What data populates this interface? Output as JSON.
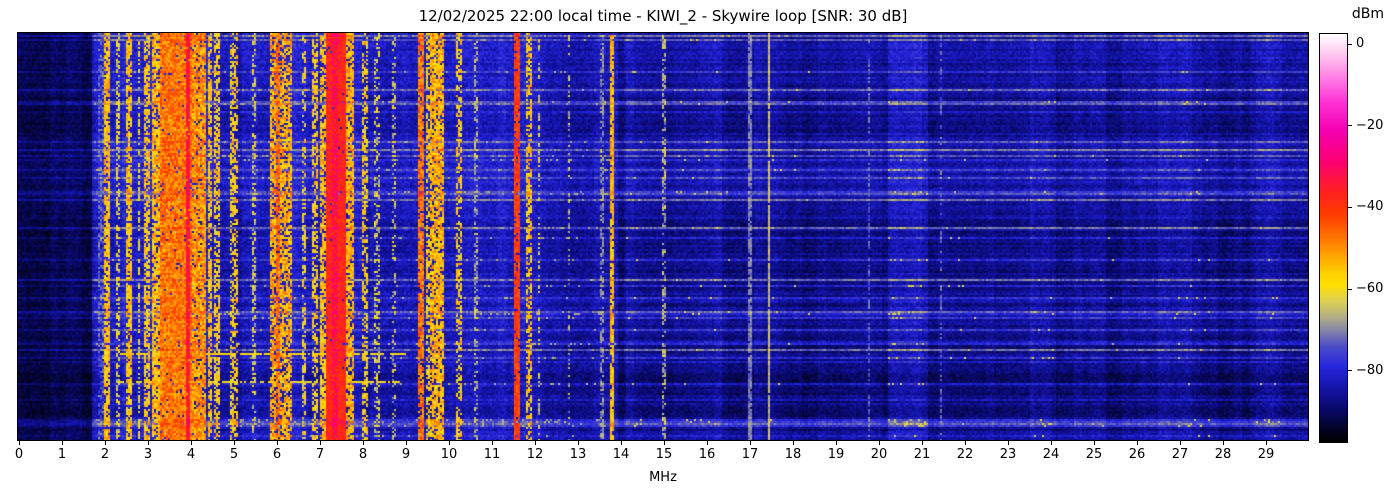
{
  "title": "12/02/2025 22:00 local time - KIWI_2 - Skywire loop [SNR: 30 dB]",
  "axes": {
    "xlabel": "MHz",
    "x_tick_labels": [
      "0",
      "1",
      "2",
      "3",
      "4",
      "5",
      "6",
      "7",
      "8",
      "9",
      "10",
      "11",
      "12",
      "13",
      "14",
      "15",
      "16",
      "17",
      "18",
      "19",
      "20",
      "21",
      "22",
      "23",
      "24",
      "25",
      "26",
      "27",
      "28",
      "29"
    ]
  },
  "colorbar": {
    "label": "dBm",
    "tick_labels": [
      "0",
      "−20",
      "−40",
      "−60",
      "−80"
    ],
    "tick_values": [
      0,
      -20,
      -40,
      -60,
      -80
    ],
    "vmax": 2.5,
    "vmin": -97.5,
    "stops": [
      {
        "v": 2.5,
        "c": "#ffffff"
      },
      {
        "v": -1,
        "c": "#ffd9f4"
      },
      {
        "v": -7,
        "c": "#ff8fe8"
      },
      {
        "v": -14,
        "c": "#ff33d6"
      },
      {
        "v": -21,
        "c": "#f500b4"
      },
      {
        "v": -29,
        "c": "#fc0070"
      },
      {
        "v": -36,
        "c": "#ff2020"
      },
      {
        "v": -42,
        "c": "#ff3c00"
      },
      {
        "v": -50,
        "c": "#ff9000"
      },
      {
        "v": -56,
        "c": "#ffcf00"
      },
      {
        "v": -59,
        "c": "#ffe000"
      },
      {
        "v": -63,
        "c": "#ddd055"
      },
      {
        "v": -67,
        "c": "#b0ad85"
      },
      {
        "v": -70,
        "c": "#8787a8"
      },
      {
        "v": -74,
        "c": "#4d4dc7"
      },
      {
        "v": -79,
        "c": "#2626df"
      },
      {
        "v": -84,
        "c": "#1414ab"
      },
      {
        "v": -90,
        "c": "#080863"
      },
      {
        "v": -95,
        "c": "#02021c"
      },
      {
        "v": -97.5,
        "c": "#000000"
      }
    ]
  },
  "chart_data": {
    "type": "heatmap",
    "title": "12/02/2025 22:00 local time - KIWI_2 - Skywire loop [SNR: 30 dB]",
    "xlabel": "MHz",
    "x_range_mhz": [
      0,
      30
    ],
    "x_tick_step_mhz": 1,
    "y_axis_visible_ticks": [],
    "value_unit": "dBm",
    "value_range": [
      -97.5,
      2.5
    ],
    "colorbar_ticks_dbm": [
      0,
      -20,
      -40,
      -60,
      -80
    ],
    "legend": "none",
    "grid": "off",
    "regions": [
      {
        "f0": 0.0,
        "f1": 1.72,
        "base": -91.5,
        "row_amp": 0.5,
        "noise": 2.5
      },
      {
        "f0": 1.72,
        "f1": 13.95,
        "base": -84.0,
        "row_amp": 0.85,
        "noise": 3.2
      },
      {
        "f0": 13.95,
        "f1": 30.0,
        "base": -87.5,
        "row_amp": 1.15,
        "noise": 2.8
      }
    ],
    "blue_zones": [
      {
        "f0": 1.75,
        "f1": 4.6,
        "boost": 2.0
      },
      {
        "f0": 5.8,
        "f1": 8.1,
        "boost": 1.2
      },
      {
        "f0": 9.2,
        "f1": 12.2,
        "boost": 0.8
      },
      {
        "f0": 14.1,
        "f1": 14.5,
        "boost": 2.0
      },
      {
        "f0": 16.0,
        "f1": 16.5,
        "boost": 1.5
      },
      {
        "f0": 20.25,
        "f1": 21.15,
        "boost": 4.5
      },
      {
        "f0": 23.55,
        "f1": 24.15,
        "boost": 3.0
      },
      {
        "f0": 26.5,
        "f1": 27.3,
        "boost": 2.5
      },
      {
        "f0": 28.8,
        "f1": 29.4,
        "boost": 2.0
      }
    ],
    "signal_bands": [
      {
        "f0": 1.85,
        "f1": 2.0,
        "level": -74,
        "jitter": 5,
        "coverage": 0.6
      },
      {
        "f0": 2.0,
        "f1": 2.14,
        "level": -56,
        "jitter": 6,
        "coverage": 0.8
      },
      {
        "f0": 2.28,
        "f1": 2.36,
        "level": -62,
        "jitter": 6,
        "coverage": 0.5
      },
      {
        "f0": 2.5,
        "f1": 2.65,
        "level": -56,
        "jitter": 6,
        "coverage": 0.75
      },
      {
        "f0": 2.78,
        "f1": 2.86,
        "level": -60,
        "jitter": 6,
        "coverage": 0.55
      },
      {
        "f0": 2.95,
        "f1": 3.08,
        "level": -57,
        "jitter": 6,
        "coverage": 0.7
      },
      {
        "f0": 3.12,
        "f1": 3.3,
        "level": -55,
        "jitter": 7,
        "coverage": 0.8
      },
      {
        "f0": 3.3,
        "f1": 4.05,
        "level": -48,
        "jitter": 6,
        "coverage": 0.97
      },
      {
        "f0": 3.91,
        "f1": 3.98,
        "level": -34,
        "jitter": 4,
        "coverage": 0.9
      },
      {
        "f0": 4.05,
        "f1": 4.35,
        "level": -51,
        "jitter": 7,
        "coverage": 0.9
      },
      {
        "f0": 4.4,
        "f1": 4.52,
        "level": -56,
        "jitter": 6,
        "coverage": 0.7
      },
      {
        "f0": 4.58,
        "f1": 4.7,
        "level": -58,
        "jitter": 6,
        "coverage": 0.6
      },
      {
        "f0": 4.95,
        "f1": 5.1,
        "level": -58,
        "jitter": 7,
        "coverage": 0.55
      },
      {
        "f0": 5.45,
        "f1": 5.55,
        "level": -63,
        "jitter": 6,
        "coverage": 0.4
      },
      {
        "f0": 5.86,
        "f1": 6.0,
        "level": -53,
        "jitter": 7,
        "coverage": 0.75
      },
      {
        "f0": 6.0,
        "f1": 6.08,
        "level": -47,
        "jitter": 6,
        "coverage": 0.85
      },
      {
        "f0": 6.1,
        "f1": 6.35,
        "level": -54,
        "jitter": 7,
        "coverage": 0.7
      },
      {
        "f0": 6.6,
        "f1": 6.7,
        "level": -60,
        "jitter": 6,
        "coverage": 0.45
      },
      {
        "f0": 6.85,
        "f1": 7.0,
        "level": -58,
        "jitter": 6,
        "coverage": 0.55
      },
      {
        "f0": 7.02,
        "f1": 7.14,
        "level": -56,
        "jitter": 6,
        "coverage": 0.7
      },
      {
        "f0": 7.17,
        "f1": 7.62,
        "level": -38,
        "jitter": 4,
        "coverage": 0.98
      },
      {
        "f0": 7.3,
        "f1": 7.46,
        "level": -33,
        "jitter": 4,
        "coverage": 0.85
      },
      {
        "f0": 7.65,
        "f1": 7.8,
        "level": -54,
        "jitter": 6,
        "coverage": 0.75
      },
      {
        "f0": 8.0,
        "f1": 8.12,
        "level": -57,
        "jitter": 6,
        "coverage": 0.55
      },
      {
        "f0": 8.3,
        "f1": 8.4,
        "level": -64,
        "jitter": 6,
        "coverage": 0.4
      },
      {
        "f0": 8.7,
        "f1": 8.8,
        "level": -65,
        "jitter": 6,
        "coverage": 0.35
      },
      {
        "f0": 9.28,
        "f1": 9.45,
        "level": -48,
        "jitter": 6,
        "coverage": 0.85
      },
      {
        "f0": 9.5,
        "f1": 9.6,
        "level": -57,
        "jitter": 6,
        "coverage": 0.6
      },
      {
        "f0": 9.6,
        "f1": 9.92,
        "level": -54,
        "jitter": 6,
        "coverage": 0.8
      },
      {
        "f0": 10.18,
        "f1": 10.32,
        "level": -58,
        "jitter": 6,
        "coverage": 0.5
      },
      {
        "f0": 10.6,
        "f1": 10.68,
        "level": -67,
        "jitter": 5,
        "coverage": 0.4
      },
      {
        "f0": 11.54,
        "f1": 11.66,
        "level": -42,
        "jitter": 4,
        "coverage": 0.92
      },
      {
        "f0": 11.8,
        "f1": 11.97,
        "level": -56,
        "jitter": 6,
        "coverage": 0.55
      },
      {
        "f0": 12.08,
        "f1": 12.16,
        "level": -63,
        "jitter": 6,
        "coverage": 0.4
      },
      {
        "f0": 12.78,
        "f1": 12.85,
        "level": -68,
        "jitter": 5,
        "coverage": 0.35
      },
      {
        "f0": 13.55,
        "f1": 13.62,
        "level": -70,
        "jitter": 4,
        "coverage": 0.55
      },
      {
        "f0": 13.78,
        "f1": 13.87,
        "level": -55,
        "jitter": 5,
        "coverage": 0.85
      },
      {
        "f0": 14.98,
        "f1": 15.05,
        "level": -67,
        "jitter": 5,
        "coverage": 0.5
      },
      {
        "f0": 17.0,
        "f1": 17.05,
        "level": -71,
        "jitter": 3,
        "coverage": 0.85
      },
      {
        "f0": 17.44,
        "f1": 17.5,
        "level": -66,
        "jitter": 3,
        "coverage": 0.95
      },
      {
        "f0": 19.78,
        "f1": 19.83,
        "level": -73,
        "jitter": 3,
        "coverage": 0.5
      },
      {
        "f0": 21.45,
        "f1": 21.5,
        "level": -73,
        "jitter": 3,
        "coverage": 0.4
      }
    ],
    "dash_clusters": [
      {
        "f0": 1.78,
        "f1": 13.9,
        "prob": 0.1,
        "level": -67
      },
      {
        "f0": 14.15,
        "f1": 14.5,
        "prob": 0.05,
        "level": -63
      },
      {
        "f0": 15.3,
        "f1": 15.9,
        "prob": 0.05,
        "level": -63
      },
      {
        "f0": 16.0,
        "f1": 16.6,
        "prob": 0.05,
        "level": -63
      },
      {
        "f0": 17.5,
        "f1": 18.4,
        "prob": 0.04,
        "level": -63
      },
      {
        "f0": 20.25,
        "f1": 21.15,
        "prob": 0.13,
        "level": -63
      },
      {
        "f0": 21.6,
        "f1": 22.3,
        "prob": 0.04,
        "level": -64
      },
      {
        "f0": 23.55,
        "f1": 24.15,
        "prob": 0.08,
        "level": -63
      },
      {
        "f0": 25.0,
        "f1": 25.6,
        "prob": 0.03,
        "level": -64
      },
      {
        "f0": 26.9,
        "f1": 27.7,
        "prob": 0.05,
        "level": -63
      },
      {
        "f0": 28.8,
        "f1": 29.35,
        "prob": 0.06,
        "level": -63
      }
    ],
    "horizontal_streaks": [
      {
        "y_frac": 0.787,
        "f0": 2.35,
        "f1": 9.0,
        "level": -59,
        "coverage": 0.8,
        "thickness": 2
      },
      {
        "y_frac": 0.853,
        "f0": 2.35,
        "f1": 9.0,
        "level": -60,
        "coverage": 0.7,
        "thickness": 2
      }
    ]
  }
}
